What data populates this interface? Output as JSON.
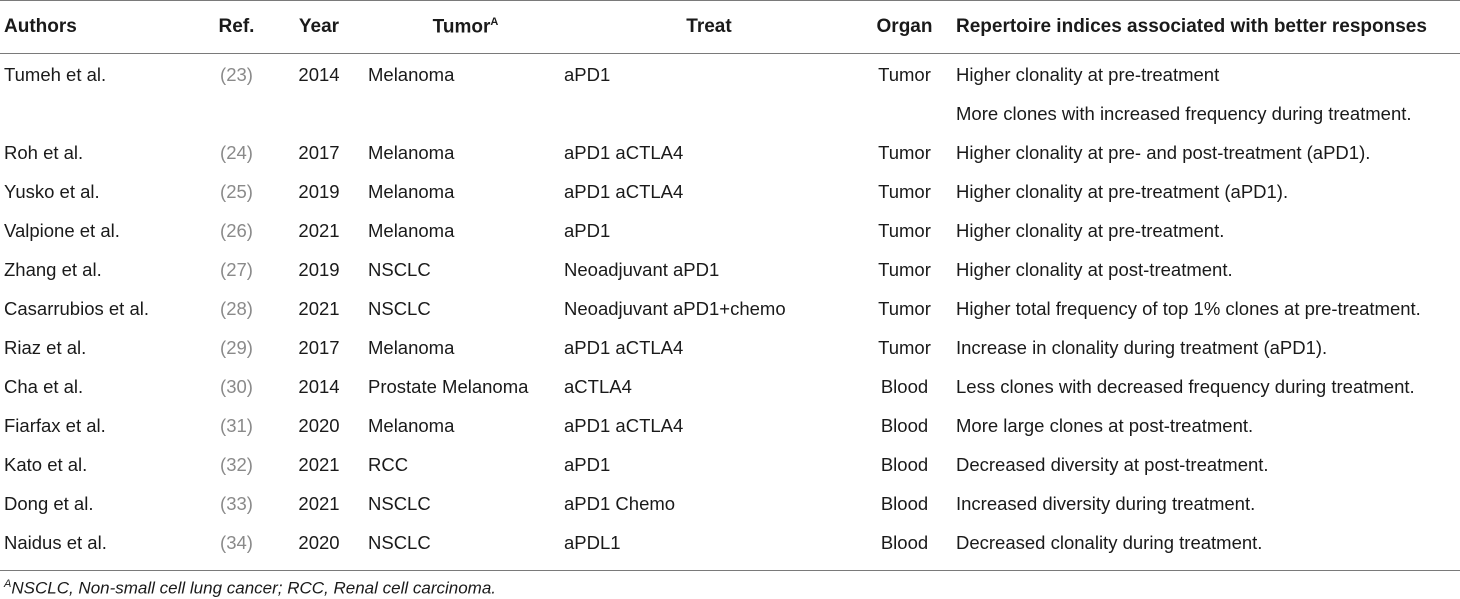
{
  "header": {
    "authors": "Authors",
    "ref": "Ref.",
    "year": "Year",
    "tumor": "Tumor",
    "tumor_sup": "A",
    "treat": "Treat",
    "organ": "Organ",
    "indices": "Repertoire indices associated with better responses"
  },
  "rows": [
    {
      "authors": "Tumeh et al.",
      "ref": "23",
      "year": "2014",
      "tumor": "Melanoma",
      "treat": "aPD1",
      "organ": "Tumor",
      "indices": "Higher clonality at pre-treatment"
    },
    {
      "authors": "",
      "ref": "",
      "year": "",
      "tumor": "",
      "treat": "",
      "organ": "",
      "indices": "More clones with increased frequency during treatment."
    },
    {
      "authors": "Roh et al.",
      "ref": "24",
      "year": "2017",
      "tumor": "Melanoma",
      "treat": "aPD1 aCTLA4",
      "organ": "Tumor",
      "indices": "Higher clonality at pre- and post-treatment (aPD1)."
    },
    {
      "authors": "Yusko et al.",
      "ref": "25",
      "year": "2019",
      "tumor": "Melanoma",
      "treat": "aPD1 aCTLA4",
      "organ": "Tumor",
      "indices": "Higher clonality at pre-treatment (aPD1)."
    },
    {
      "authors": "Valpione et al.",
      "ref": "26",
      "year": "2021",
      "tumor": "Melanoma",
      "treat": "aPD1",
      "organ": "Tumor",
      "indices": "Higher clonality at pre-treatment."
    },
    {
      "authors": "Zhang et al.",
      "ref": "27",
      "year": "2019",
      "tumor": "NSCLC",
      "treat": "Neoadjuvant aPD1",
      "organ": "Tumor",
      "indices": "Higher clonality at post-treatment."
    },
    {
      "authors": "Casarrubios et al.",
      "ref": "28",
      "year": "2021",
      "tumor": "NSCLC",
      "treat": "Neoadjuvant aPD1+chemo",
      "organ": "Tumor",
      "indices": "Higher total frequency of top 1% clones at pre-treatment."
    },
    {
      "authors": "Riaz et al.",
      "ref": "29",
      "year": "2017",
      "tumor": "Melanoma",
      "treat": "aPD1 aCTLA4",
      "organ": "Tumor",
      "indices": "Increase in clonality during treatment (aPD1)."
    },
    {
      "authors": "Cha et al.",
      "ref": "30",
      "year": "2014",
      "tumor": "Prostate Melanoma",
      "treat": "aCTLA4",
      "organ": "Blood",
      "indices": "Less clones with decreased frequency during treatment."
    },
    {
      "authors": "Fiarfax et al.",
      "ref": "31",
      "year": "2020",
      "tumor": "Melanoma",
      "treat": "aPD1 aCTLA4",
      "organ": "Blood",
      "indices": "More large clones at post-treatment."
    },
    {
      "authors": "Kato et al.",
      "ref": "32",
      "year": "2021",
      "tumor": "RCC",
      "treat": "aPD1",
      "organ": "Blood",
      "indices": "Decreased diversity at post-treatment."
    },
    {
      "authors": "Dong et al.",
      "ref": "33",
      "year": "2021",
      "tumor": "NSCLC",
      "treat": "aPD1 Chemo",
      "organ": "Blood",
      "indices": "Increased diversity during treatment."
    },
    {
      "authors": "Naidus et al.",
      "ref": "34",
      "year": "2020",
      "tumor": "NSCLC",
      "treat": "aPDL1",
      "organ": "Blood",
      "indices": "Decreased clonality during treatment."
    }
  ],
  "footnote": {
    "marker": "A",
    "text": "NSCLC, Non-small cell lung cancer; RCC, Renal cell carcinoma."
  }
}
